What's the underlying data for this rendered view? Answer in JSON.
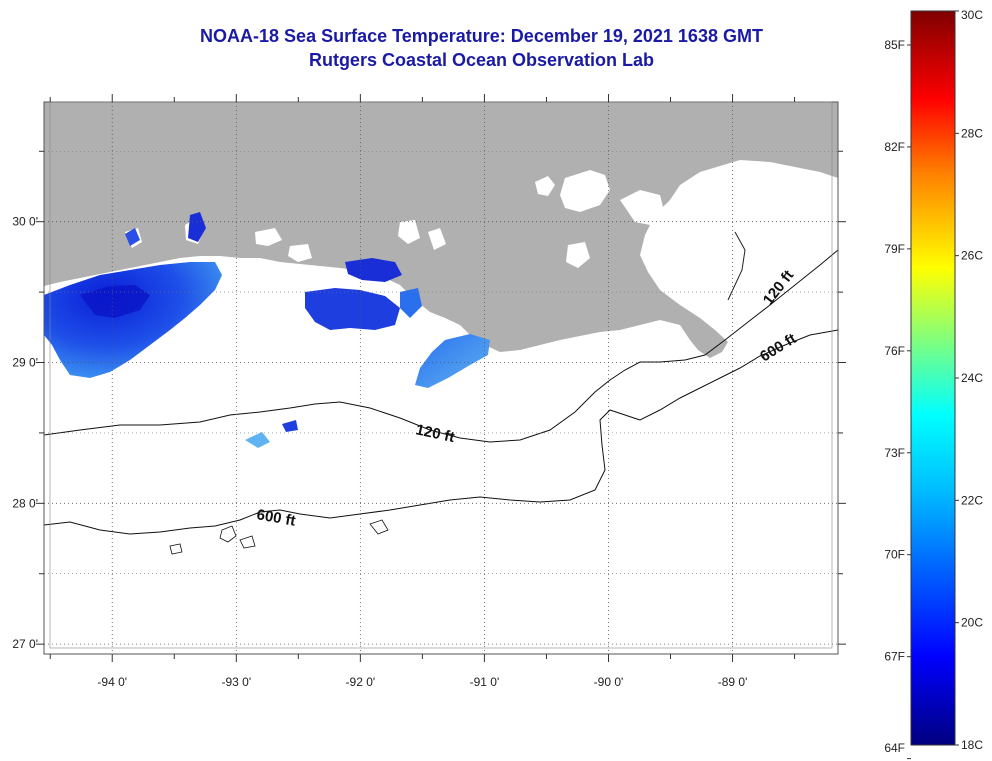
{
  "header": {
    "title": "NOAA-18 Sea Surface Temperature:  December 19, 2021 1638 GMT",
    "subtitle": "Rutgers Coastal Ocean Observation Lab"
  },
  "map": {
    "lon_range": [
      -94.55,
      -88.15
    ],
    "lat_range": [
      26.93,
      30.85
    ],
    "lon_ticks": [
      {
        "value": -94,
        "label": "-94 0'"
      },
      {
        "value": -93,
        "label": "-93 0'"
      },
      {
        "value": -92,
        "label": "-92 0'"
      },
      {
        "value": -91,
        "label": "-91 0'"
      },
      {
        "value": -90,
        "label": "-90 0'"
      },
      {
        "value": -89,
        "label": "-89 0'"
      }
    ],
    "lat_ticks": [
      {
        "value": 30,
        "label": "30 0'"
      },
      {
        "value": 29,
        "label": "29 0'"
      },
      {
        "value": 28,
        "label": "28 0'"
      },
      {
        "value": 27,
        "label": "27 0'"
      }
    ],
    "land_color": "#b0b0b0",
    "water_color": "#ffffff",
    "grid": "dotted",
    "contour_labels": [
      {
        "label": "120 ft",
        "depth": "shelf"
      },
      {
        "label": "600 ft",
        "depth": "slope"
      },
      {
        "label": "120 ft",
        "depth": "shelf-east"
      },
      {
        "label": "600 ft",
        "depth": "slope-east"
      }
    ]
  },
  "colorbar": {
    "fahrenheit_labels": [
      "85F",
      "82F",
      "79F",
      "76F",
      "73F",
      "70F",
      "67F",
      "64F"
    ],
    "celsius_labels": [
      "30C",
      "28C",
      "26C",
      "24C",
      "22C",
      "20C",
      "18C"
    ],
    "range_c": [
      18,
      30
    ],
    "colors": [
      "#00007f",
      "#0000ff",
      "#007fff",
      "#00ffff",
      "#7fff7f",
      "#ffff00",
      "#ff7f00",
      "#ff0000",
      "#7f0000"
    ]
  }
}
